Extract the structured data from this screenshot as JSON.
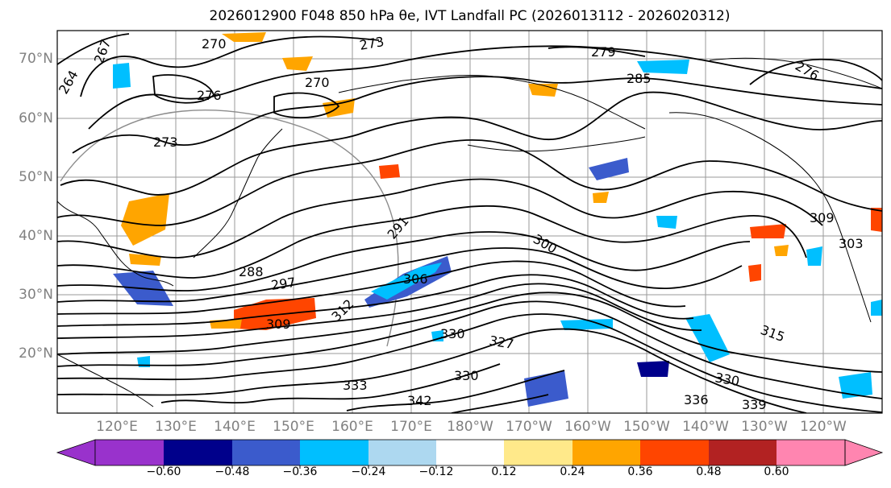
{
  "title": "2026012900 F048 850 hPa θe, IVT Landfall PC (2026013112 - 2026020312)",
  "map": {
    "lat_labels": [
      "70°N",
      "60°N",
      "50°N",
      "40°N",
      "30°N",
      "20°N"
    ],
    "lon_labels": [
      "120°E",
      "130°E",
      "140°E",
      "150°E",
      "160°E",
      "170°E",
      "180°W",
      "170°W",
      "160°W",
      "150°W",
      "140°W",
      "130°W",
      "120°W"
    ],
    "contour_labels": [
      "264",
      "267",
      "270",
      "270",
      "273",
      "273",
      "276",
      "276",
      "279",
      "285",
      "291",
      "288",
      "297",
      "300",
      "309",
      "312",
      "306",
      "327",
      "330",
      "330",
      "330",
      "333",
      "336",
      "339",
      "342",
      "303",
      "309",
      "315"
    ]
  },
  "colorbar": {
    "ticks": [
      "−0.60",
      "−0.48",
      "−0.36",
      "−0.24",
      "−0.12",
      "0.12",
      "0.24",
      "0.36",
      "0.48",
      "0.60"
    ],
    "colors": [
      "#9932cc",
      "#00008b",
      "#3b5bcc",
      "#00bfff",
      "#add8f0",
      "#ffffff",
      "#ffe98a",
      "#ffa500",
      "#ff4500",
      "#b22222",
      "#ff85b0"
    ]
  }
}
